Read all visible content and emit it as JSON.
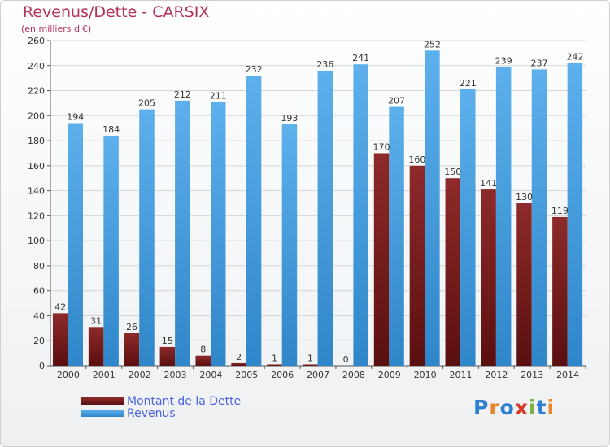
{
  "title": "Revenus/Dette - CARSIX",
  "subtitle": "(en milliers d'€)",
  "logo": "Proxiti",
  "chart_data": {
    "type": "bar",
    "categories": [
      "2000",
      "2001",
      "2002",
      "2003",
      "2004",
      "2005",
      "2006",
      "2007",
      "2008",
      "2009",
      "2010",
      "2011",
      "2012",
      "2013",
      "2014"
    ],
    "series": [
      {
        "name": "Montant de la Dette",
        "color": "#7b1f1f",
        "values": [
          42,
          31,
          26,
          15,
          8,
          2,
          1,
          1,
          0,
          170,
          160,
          150,
          141,
          130,
          119
        ]
      },
      {
        "name": "Revenus",
        "color": "#4ea3e3",
        "values": [
          194,
          184,
          205,
          212,
          211,
          232,
          193,
          236,
          241,
          207,
          252,
          221,
          239,
          237,
          242
        ]
      }
    ],
    "ylim": [
      0,
      260
    ],
    "yticks": [
      0,
      20,
      40,
      60,
      80,
      100,
      120,
      140,
      160,
      180,
      200,
      220,
      240,
      260
    ],
    "grid": true,
    "legend": "bottom-left"
  }
}
